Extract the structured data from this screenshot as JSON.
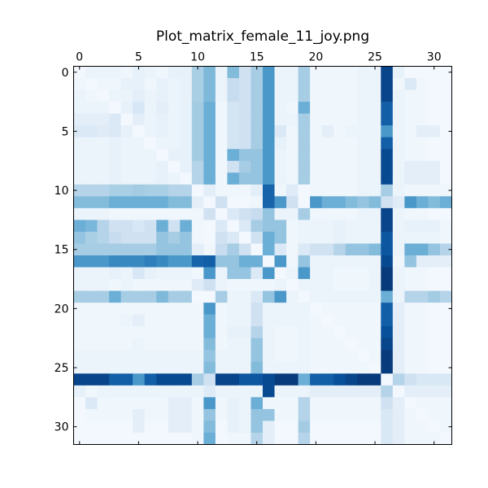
{
  "chart_data": {
    "type": "heatmap",
    "title": "Plot_matrix_female_11_joy.png",
    "xlabel": "",
    "ylabel": "",
    "size": 32,
    "x_ticks": [
      0,
      5,
      10,
      15,
      20,
      25,
      30
    ],
    "y_ticks": [
      0,
      5,
      10,
      15,
      20,
      25,
      30
    ],
    "x_tick_labels": [
      "0",
      "5",
      "10",
      "15",
      "20",
      "25",
      "30"
    ],
    "y_tick_labels": [
      "0",
      "5",
      "10",
      "15",
      "20",
      "25",
      "30"
    ],
    "xlim": [
      -0.5,
      31.5
    ],
    "ylim": [
      -0.5,
      31.5
    ],
    "x_axis_position": "top",
    "colormap": "Blues",
    "value_range": [
      0,
      1
    ],
    "grid": false,
    "matrix": [
      [
        0.02,
        0.06,
        0.06,
        0.06,
        0.04,
        0.08,
        0.06,
        0.04,
        0.08,
        0.08,
        0.34,
        0.45,
        0.06,
        0.44,
        0.2,
        0.35,
        0.6,
        0.06,
        0.06,
        0.35,
        0.04,
        0.04,
        0.04,
        0.04,
        0.06,
        0.06,
        0.92,
        0.08,
        0.02,
        0.02,
        0.02,
        0.02
      ],
      [
        0.04,
        0.02,
        0.04,
        0.04,
        0.08,
        0.08,
        0.04,
        0.08,
        0.06,
        0.08,
        0.34,
        0.45,
        0.06,
        0.24,
        0.2,
        0.35,
        0.6,
        0.06,
        0.06,
        0.35,
        0.04,
        0.04,
        0.04,
        0.04,
        0.06,
        0.06,
        0.92,
        0.04,
        0.14,
        0.04,
        0.02,
        0.02
      ],
      [
        0.06,
        0.04,
        0.02,
        0.06,
        0.06,
        0.1,
        0.06,
        0.08,
        0.06,
        0.08,
        0.34,
        0.45,
        0.06,
        0.24,
        0.2,
        0.35,
        0.6,
        0.06,
        0.06,
        0.35,
        0.04,
        0.04,
        0.04,
        0.04,
        0.06,
        0.06,
        0.92,
        0.06,
        0.04,
        0.04,
        0.02,
        0.02
      ],
      [
        0.06,
        0.06,
        0.06,
        0.02,
        0.08,
        0.16,
        0.06,
        0.1,
        0.06,
        0.08,
        0.36,
        0.5,
        0.04,
        0.18,
        0.2,
        0.35,
        0.6,
        0.06,
        0.04,
        0.5,
        0.04,
        0.04,
        0.04,
        0.04,
        0.06,
        0.06,
        0.82,
        0.06,
        0.04,
        0.04,
        0.02,
        0.02
      ],
      [
        0.1,
        0.1,
        0.1,
        0.14,
        0.02,
        0.1,
        0.06,
        0.08,
        0.06,
        0.08,
        0.36,
        0.5,
        0.04,
        0.18,
        0.2,
        0.35,
        0.6,
        0.06,
        0.06,
        0.35,
        0.04,
        0.04,
        0.04,
        0.04,
        0.06,
        0.06,
        0.82,
        0.06,
        0.04,
        0.04,
        0.02,
        0.02
      ],
      [
        0.14,
        0.14,
        0.12,
        0.14,
        0.08,
        0.02,
        0.06,
        0.08,
        0.06,
        0.08,
        0.36,
        0.5,
        0.04,
        0.18,
        0.2,
        0.35,
        0.6,
        0.14,
        0.04,
        0.35,
        0.04,
        0.1,
        0.04,
        0.06,
        0.06,
        0.06,
        0.6,
        0.06,
        0.04,
        0.1,
        0.1,
        0.02
      ],
      [
        0.06,
        0.06,
        0.06,
        0.08,
        0.06,
        0.06,
        0.02,
        0.06,
        0.06,
        0.08,
        0.36,
        0.5,
        0.04,
        0.18,
        0.2,
        0.35,
        0.6,
        0.08,
        0.04,
        0.35,
        0.04,
        0.04,
        0.04,
        0.04,
        0.06,
        0.06,
        0.82,
        0.06,
        0.04,
        0.04,
        0.02,
        0.02
      ],
      [
        0.06,
        0.06,
        0.06,
        0.08,
        0.06,
        0.06,
        0.06,
        0.02,
        0.08,
        0.08,
        0.36,
        0.5,
        0.04,
        0.5,
        0.4,
        0.4,
        0.6,
        0.06,
        0.04,
        0.35,
        0.04,
        0.04,
        0.04,
        0.04,
        0.06,
        0.06,
        0.9,
        0.06,
        0.04,
        0.04,
        0.02,
        0.02
      ],
      [
        0.06,
        0.06,
        0.06,
        0.08,
        0.06,
        0.06,
        0.06,
        0.08,
        0.02,
        0.08,
        0.3,
        0.5,
        0.04,
        0.2,
        0.35,
        0.4,
        0.6,
        0.06,
        0.04,
        0.35,
        0.04,
        0.04,
        0.04,
        0.04,
        0.06,
        0.06,
        0.9,
        0.06,
        0.1,
        0.1,
        0.1,
        0.02
      ],
      [
        0.06,
        0.06,
        0.06,
        0.08,
        0.06,
        0.06,
        0.06,
        0.08,
        0.06,
        0.02,
        0.3,
        0.5,
        0.04,
        0.5,
        0.4,
        0.4,
        0.6,
        0.06,
        0.04,
        0.35,
        0.04,
        0.04,
        0.04,
        0.04,
        0.06,
        0.06,
        0.9,
        0.06,
        0.1,
        0.1,
        0.1,
        0.02
      ],
      [
        0.3,
        0.3,
        0.3,
        0.34,
        0.34,
        0.36,
        0.34,
        0.34,
        0.3,
        0.3,
        0.02,
        0.1,
        0.04,
        0.04,
        0.04,
        0.1,
        0.8,
        0.04,
        0.12,
        0.02,
        0.04,
        0.04,
        0.04,
        0.04,
        0.06,
        0.06,
        0.35,
        0.06,
        0.04,
        0.04,
        0.04,
        0.04
      ],
      [
        0.44,
        0.44,
        0.44,
        0.5,
        0.5,
        0.5,
        0.5,
        0.5,
        0.44,
        0.44,
        0.1,
        0.02,
        0.2,
        0.02,
        0.02,
        0.04,
        0.8,
        0.6,
        0.2,
        0.02,
        0.6,
        0.5,
        0.5,
        0.44,
        0.4,
        0.44,
        0.2,
        0.12,
        0.6,
        0.5,
        0.44,
        0.5
      ],
      [
        0.06,
        0.06,
        0.06,
        0.04,
        0.04,
        0.04,
        0.04,
        0.04,
        0.04,
        0.04,
        0.04,
        0.2,
        0.02,
        0.14,
        0.2,
        0.24,
        0.4,
        0.06,
        0.06,
        0.35,
        0.04,
        0.04,
        0.04,
        0.04,
        0.06,
        0.06,
        0.92,
        0.06,
        0.04,
        0.04,
        0.02,
        0.02
      ],
      [
        0.5,
        0.46,
        0.3,
        0.2,
        0.2,
        0.16,
        0.2,
        0.5,
        0.2,
        0.5,
        0.04,
        0.02,
        0.14,
        0.02,
        0.14,
        0.35,
        0.4,
        0.4,
        0.04,
        0.06,
        0.06,
        0.06,
        0.08,
        0.06,
        0.06,
        0.06,
        0.92,
        0.06,
        0.08,
        0.08,
        0.08,
        0.04
      ],
      [
        0.4,
        0.34,
        0.3,
        0.24,
        0.2,
        0.2,
        0.2,
        0.4,
        0.35,
        0.4,
        0.04,
        0.02,
        0.2,
        0.14,
        0.02,
        0.2,
        0.5,
        0.4,
        0.04,
        0.06,
        0.06,
        0.06,
        0.08,
        0.06,
        0.06,
        0.06,
        0.85,
        0.06,
        0.06,
        0.06,
        0.06,
        0.04
      ],
      [
        0.35,
        0.35,
        0.35,
        0.35,
        0.35,
        0.35,
        0.35,
        0.4,
        0.4,
        0.4,
        0.1,
        0.04,
        0.24,
        0.35,
        0.2,
        0.02,
        0.5,
        0.14,
        0.04,
        0.14,
        0.2,
        0.2,
        0.3,
        0.4,
        0.4,
        0.44,
        0.85,
        0.06,
        0.5,
        0.5,
        0.4,
        0.3
      ],
      [
        0.6,
        0.6,
        0.6,
        0.66,
        0.66,
        0.66,
        0.7,
        0.66,
        0.6,
        0.6,
        0.8,
        0.82,
        0.4,
        0.4,
        0.5,
        0.5,
        0.02,
        0.6,
        0.04,
        0.4,
        0.06,
        0.06,
        0.06,
        0.06,
        0.06,
        0.06,
        0.9,
        0.04,
        0.4,
        0.1,
        0.1,
        0.1
      ],
      [
        0.06,
        0.06,
        0.06,
        0.08,
        0.06,
        0.16,
        0.08,
        0.06,
        0.06,
        0.06,
        0.04,
        0.6,
        0.06,
        0.4,
        0.4,
        0.14,
        0.6,
        0.02,
        0.06,
        0.6,
        0.06,
        0.06,
        0.04,
        0.04,
        0.04,
        0.06,
        0.96,
        0.06,
        0.04,
        0.04,
        0.02,
        0.02
      ],
      [
        0.06,
        0.06,
        0.06,
        0.04,
        0.06,
        0.04,
        0.04,
        0.04,
        0.04,
        0.04,
        0.12,
        0.2,
        0.06,
        0.04,
        0.04,
        0.04,
        0.04,
        0.06,
        0.02,
        0.06,
        0.06,
        0.06,
        0.04,
        0.04,
        0.04,
        0.06,
        0.96,
        0.06,
        0.04,
        0.04,
        0.02,
        0.02
      ],
      [
        0.35,
        0.35,
        0.35,
        0.5,
        0.35,
        0.35,
        0.35,
        0.45,
        0.35,
        0.35,
        0.02,
        0.02,
        0.35,
        0.06,
        0.06,
        0.14,
        0.4,
        0.6,
        0.06,
        0.02,
        0.06,
        0.06,
        0.06,
        0.06,
        0.06,
        0.06,
        0.5,
        0.06,
        0.3,
        0.3,
        0.36,
        0.3
      ],
      [
        0.04,
        0.04,
        0.04,
        0.04,
        0.04,
        0.04,
        0.04,
        0.04,
        0.04,
        0.04,
        0.04,
        0.6,
        0.04,
        0.06,
        0.06,
        0.2,
        0.06,
        0.06,
        0.06,
        0.06,
        0.02,
        0.04,
        0.04,
        0.04,
        0.04,
        0.04,
        0.82,
        0.1,
        0.04,
        0.04,
        0.02,
        0.02
      ],
      [
        0.04,
        0.04,
        0.04,
        0.04,
        0.06,
        0.1,
        0.04,
        0.04,
        0.04,
        0.04,
        0.04,
        0.5,
        0.04,
        0.06,
        0.06,
        0.2,
        0.06,
        0.06,
        0.06,
        0.06,
        0.04,
        0.02,
        0.04,
        0.04,
        0.04,
        0.04,
        0.82,
        0.1,
        0.04,
        0.04,
        0.02,
        0.02
      ],
      [
        0.04,
        0.04,
        0.04,
        0.04,
        0.04,
        0.04,
        0.04,
        0.04,
        0.04,
        0.04,
        0.04,
        0.5,
        0.04,
        0.08,
        0.08,
        0.3,
        0.06,
        0.04,
        0.04,
        0.06,
        0.04,
        0.04,
        0.02,
        0.04,
        0.04,
        0.04,
        0.88,
        0.1,
        0.04,
        0.04,
        0.02,
        0.02
      ],
      [
        0.04,
        0.04,
        0.04,
        0.04,
        0.04,
        0.06,
        0.04,
        0.04,
        0.04,
        0.04,
        0.04,
        0.44,
        0.04,
        0.06,
        0.06,
        0.4,
        0.06,
        0.04,
        0.04,
        0.06,
        0.04,
        0.04,
        0.04,
        0.02,
        0.04,
        0.04,
        0.92,
        0.1,
        0.04,
        0.04,
        0.02,
        0.02
      ],
      [
        0.06,
        0.06,
        0.06,
        0.06,
        0.06,
        0.06,
        0.06,
        0.06,
        0.06,
        0.06,
        0.06,
        0.4,
        0.06,
        0.06,
        0.06,
        0.4,
        0.06,
        0.04,
        0.04,
        0.06,
        0.04,
        0.04,
        0.04,
        0.04,
        0.02,
        0.04,
        0.96,
        0.1,
        0.04,
        0.04,
        0.02,
        0.02
      ],
      [
        0.06,
        0.06,
        0.06,
        0.06,
        0.06,
        0.06,
        0.06,
        0.06,
        0.06,
        0.06,
        0.06,
        0.44,
        0.06,
        0.06,
        0.06,
        0.44,
        0.06,
        0.06,
        0.06,
        0.06,
        0.04,
        0.04,
        0.04,
        0.04,
        0.04,
        0.02,
        0.96,
        0.1,
        0.04,
        0.04,
        0.02,
        0.02
      ],
      [
        0.92,
        0.92,
        0.92,
        0.82,
        0.82,
        0.6,
        0.82,
        0.9,
        0.9,
        0.9,
        0.35,
        0.2,
        0.92,
        0.92,
        0.85,
        0.85,
        0.9,
        0.96,
        0.96,
        0.5,
        0.82,
        0.82,
        0.88,
        0.92,
        0.96,
        0.96,
        0.02,
        0.3,
        0.2,
        0.15,
        0.15,
        0.15
      ],
      [
        0.08,
        0.04,
        0.06,
        0.06,
        0.06,
        0.06,
        0.06,
        0.06,
        0.06,
        0.06,
        0.06,
        0.12,
        0.06,
        0.06,
        0.06,
        0.06,
        0.9,
        0.06,
        0.06,
        0.06,
        0.1,
        0.1,
        0.1,
        0.1,
        0.1,
        0.1,
        0.3,
        0.02,
        0.1,
        0.1,
        0.1,
        0.1
      ],
      [
        0.02,
        0.14,
        0.04,
        0.04,
        0.04,
        0.04,
        0.04,
        0.04,
        0.1,
        0.1,
        0.04,
        0.6,
        0.04,
        0.08,
        0.06,
        0.5,
        0.04,
        0.04,
        0.04,
        0.3,
        0.04,
        0.04,
        0.04,
        0.04,
        0.04,
        0.04,
        0.2,
        0.1,
        0.02,
        0.04,
        0.04,
        0.04
      ],
      [
        0.02,
        0.04,
        0.04,
        0.04,
        0.04,
        0.1,
        0.04,
        0.04,
        0.1,
        0.1,
        0.04,
        0.4,
        0.04,
        0.08,
        0.06,
        0.4,
        0.4,
        0.04,
        0.04,
        0.3,
        0.04,
        0.04,
        0.04,
        0.04,
        0.04,
        0.04,
        0.15,
        0.1,
        0.04,
        0.02,
        0.04,
        0.04
      ],
      [
        0.02,
        0.02,
        0.02,
        0.02,
        0.02,
        0.1,
        0.02,
        0.02,
        0.1,
        0.1,
        0.04,
        0.44,
        0.02,
        0.08,
        0.06,
        0.4,
        0.1,
        0.02,
        0.02,
        0.36,
        0.02,
        0.02,
        0.02,
        0.02,
        0.02,
        0.02,
        0.15,
        0.1,
        0.04,
        0.04,
        0.02,
        0.04
      ],
      [
        0.02,
        0.02,
        0.02,
        0.02,
        0.02,
        0.02,
        0.02,
        0.02,
        0.02,
        0.02,
        0.04,
        0.5,
        0.02,
        0.04,
        0.04,
        0.3,
        0.1,
        0.02,
        0.02,
        0.3,
        0.02,
        0.02,
        0.02,
        0.02,
        0.02,
        0.02,
        0.15,
        0.1,
        0.04,
        0.04,
        0.04,
        0.02
      ]
    ]
  }
}
